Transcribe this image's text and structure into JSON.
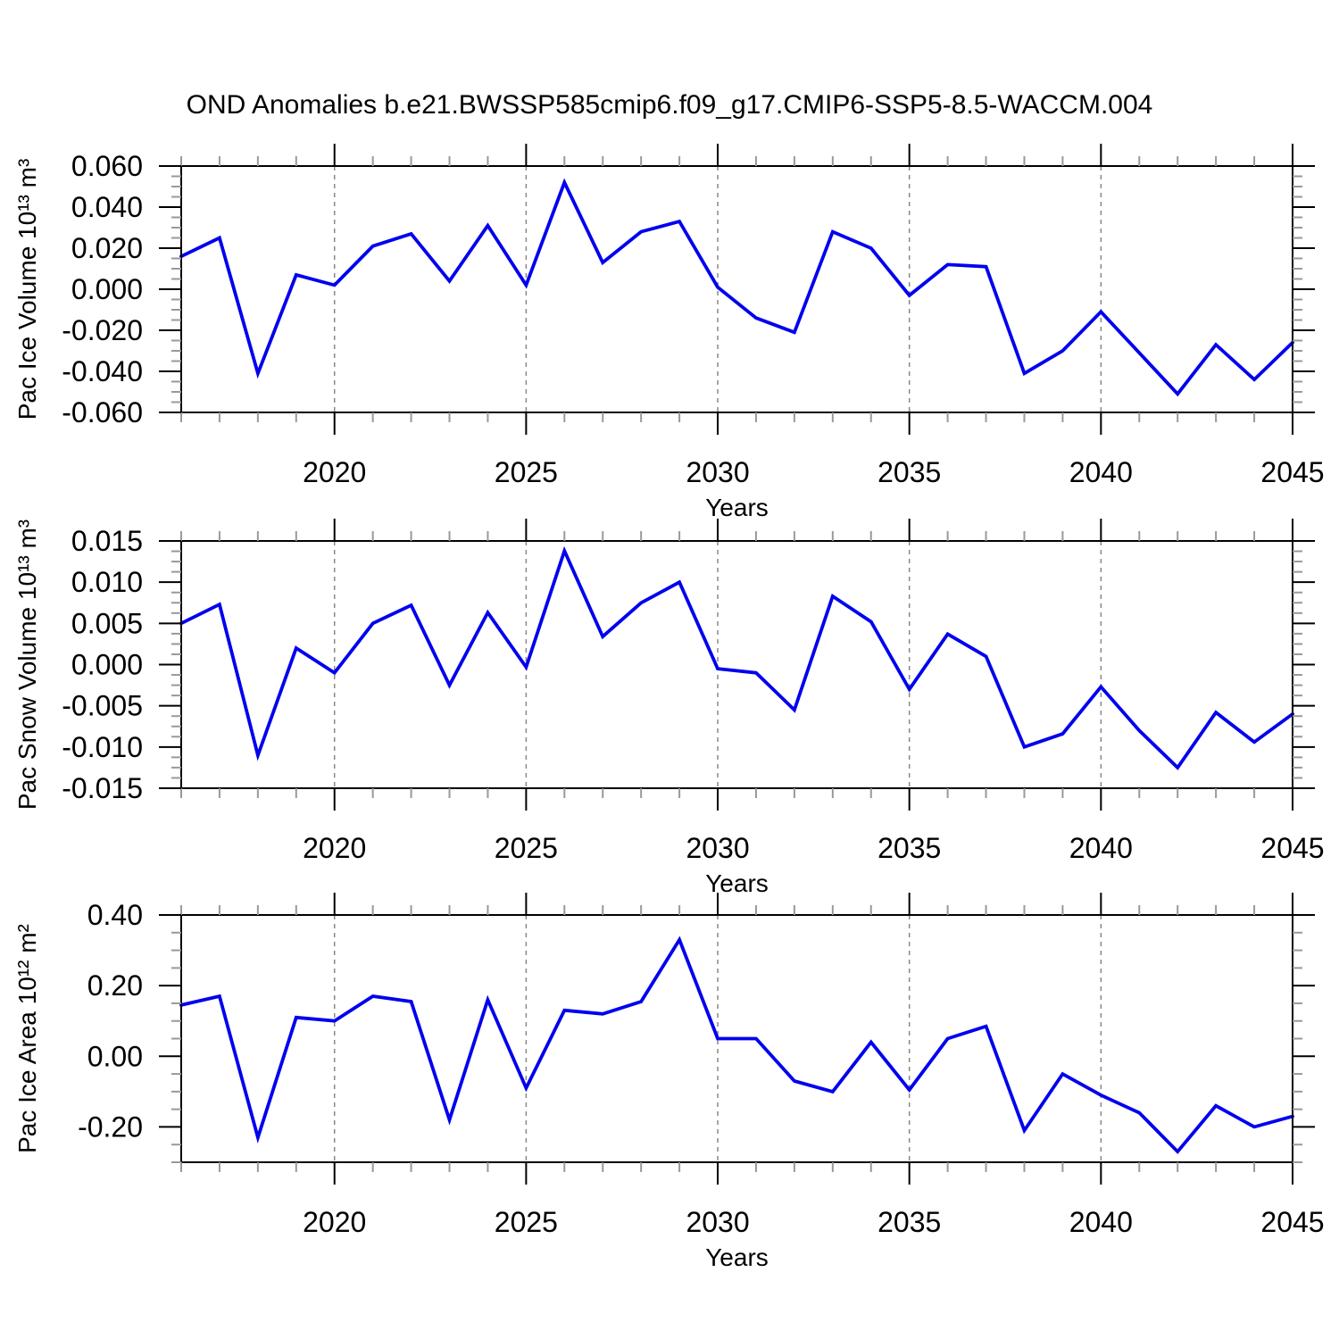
{
  "title": "OND Anomalies b.e21.BWSSP585cmip6.f09_g17.CMIP6-SSP5-8.5-WACCM.004",
  "colors": {
    "line": "#0000ee",
    "frame": "#000000",
    "grid": "#888888",
    "major_tick": "#000000",
    "minor_tick": "#999999",
    "background": "#ffffff"
  },
  "chart_data": [
    {
      "type": "line",
      "name": "pac-ice-volume",
      "ylabel": "Pac Ice Volume 10¹³ m³",
      "xlabel": "Years",
      "x": [
        2016,
        2017,
        2018,
        2019,
        2020,
        2021,
        2022,
        2023,
        2024,
        2025,
        2026,
        2027,
        2028,
        2029,
        2030,
        2031,
        2032,
        2033,
        2034,
        2035,
        2036,
        2037,
        2038,
        2039,
        2040,
        2041,
        2042,
        2043,
        2044,
        2045
      ],
      "values": [
        0.016,
        0.025,
        -0.041,
        0.007,
        0.002,
        0.021,
        0.027,
        0.004,
        0.031,
        0.002,
        0.052,
        0.013,
        0.028,
        0.033,
        0.001,
        -0.014,
        -0.021,
        0.028,
        0.02,
        -0.003,
        0.012,
        0.011,
        -0.041,
        -0.03,
        -0.011,
        -0.031,
        -0.051,
        -0.027,
        -0.044,
        -0.026
      ],
      "xlim": [
        2016,
        2045
      ],
      "ylim": [
        -0.06,
        0.06
      ],
      "yticks": {
        "values": [
          0.06,
          0.04,
          0.02,
          0.0,
          -0.02,
          -0.04,
          -0.06
        ],
        "labels": [
          "0.060",
          "0.040",
          "0.020",
          "0.000",
          "-0.020",
          "-0.040",
          "-0.060"
        ],
        "minor_step": 0.005
      },
      "xticks": {
        "values": [
          2020,
          2025,
          2030,
          2035,
          2040,
          2045
        ],
        "labels": [
          "2020",
          "2025",
          "2030",
          "2035",
          "2040",
          "2045"
        ],
        "minor_step": 1
      },
      "grid_x_values": [
        2020,
        2025,
        2030,
        2035,
        2040
      ],
      "grid_style": "dashed",
      "legend": null
    },
    {
      "type": "line",
      "name": "pac-snow-volume",
      "ylabel": "Pac Snow Volume 10¹³ m³",
      "xlabel": "Years",
      "x": [
        2016,
        2017,
        2018,
        2019,
        2020,
        2021,
        2022,
        2023,
        2024,
        2025,
        2026,
        2027,
        2028,
        2029,
        2030,
        2031,
        2032,
        2033,
        2034,
        2035,
        2036,
        2037,
        2038,
        2039,
        2040,
        2041,
        2042,
        2043,
        2044,
        2045
      ],
      "values": [
        0.005,
        0.0073,
        -0.011,
        0.002,
        -0.001,
        0.005,
        0.0072,
        -0.0025,
        0.0063,
        -0.0003,
        0.0138,
        0.0034,
        0.0075,
        0.01,
        -0.0005,
        -0.001,
        -0.0055,
        0.0083,
        0.0052,
        -0.003,
        0.0037,
        0.001,
        -0.01,
        -0.0084,
        -0.0027,
        -0.008,
        -0.0125,
        -0.0058,
        -0.0094,
        -0.006
      ],
      "xlim": [
        2016,
        2045
      ],
      "ylim": [
        -0.015,
        0.015
      ],
      "yticks": {
        "values": [
          0.015,
          0.01,
          0.005,
          0.0,
          -0.005,
          -0.01,
          -0.015
        ],
        "labels": [
          "0.015",
          "0.010",
          "0.005",
          "0.000",
          "-0.005",
          "-0.010",
          "-0.015"
        ],
        "minor_step": 0.00125
      },
      "xticks": {
        "values": [
          2020,
          2025,
          2030,
          2035,
          2040,
          2045
        ],
        "labels": [
          "2020",
          "2025",
          "2030",
          "2035",
          "2040",
          "2045"
        ],
        "minor_step": 1
      },
      "grid_x_values": [
        2020,
        2025,
        2030,
        2035,
        2040
      ],
      "grid_style": "dashed",
      "legend": null
    },
    {
      "type": "line",
      "name": "pac-ice-area",
      "ylabel": "Pac Ice Area 10¹² m²",
      "xlabel": "Years",
      "x": [
        2016,
        2017,
        2018,
        2019,
        2020,
        2021,
        2022,
        2023,
        2024,
        2025,
        2026,
        2027,
        2028,
        2029,
        2030,
        2031,
        2032,
        2033,
        2034,
        2035,
        2036,
        2037,
        2038,
        2039,
        2040,
        2041,
        2042,
        2043,
        2044,
        2045
      ],
      "values": [
        0.145,
        0.17,
        -0.23,
        0.11,
        0.1,
        0.17,
        0.155,
        -0.18,
        0.16,
        -0.09,
        0.13,
        0.12,
        0.155,
        0.33,
        0.05,
        0.05,
        -0.07,
        -0.1,
        0.04,
        -0.095,
        0.05,
        0.085,
        -0.21,
        -0.05,
        -0.11,
        -0.16,
        -0.27,
        -0.14,
        -0.2,
        -0.17
      ],
      "xlim": [
        2016,
        2045
      ],
      "ylim": [
        -0.3,
        0.4
      ],
      "yticks": {
        "values": [
          0.4,
          0.2,
          0.0,
          -0.2
        ],
        "labels": [
          "0.40",
          "0.20",
          "0.00",
          "-0.20"
        ],
        "minor_step": 0.05
      },
      "xticks": {
        "values": [
          2020,
          2025,
          2030,
          2035,
          2040,
          2045
        ],
        "labels": [
          "2020",
          "2025",
          "2030",
          "2035",
          "2040",
          "2045"
        ],
        "minor_step": 1
      },
      "grid_x_values": [
        2020,
        2025,
        2030,
        2035,
        2040
      ],
      "grid_style": "dashed",
      "legend": null
    }
  ]
}
